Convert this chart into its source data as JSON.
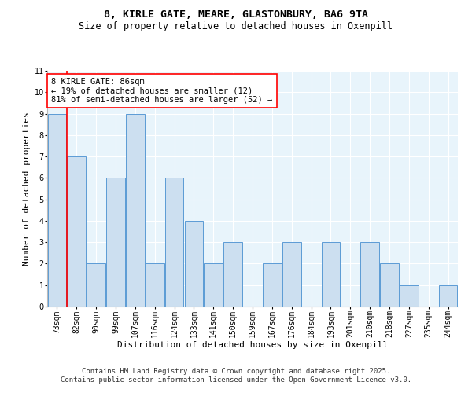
{
  "title1": "8, KIRLE GATE, MEARE, GLASTONBURY, BA6 9TA",
  "title2": "Size of property relative to detached houses in Oxenpill",
  "xlabel": "Distribution of detached houses by size in Oxenpill",
  "ylabel": "Number of detached properties",
  "categories": [
    "73sqm",
    "82sqm",
    "90sqm",
    "99sqm",
    "107sqm",
    "116sqm",
    "124sqm",
    "133sqm",
    "141sqm",
    "150sqm",
    "159sqm",
    "167sqm",
    "176sqm",
    "184sqm",
    "193sqm",
    "201sqm",
    "210sqm",
    "218sqm",
    "227sqm",
    "235sqm",
    "244sqm"
  ],
  "values": [
    9,
    7,
    2,
    6,
    9,
    2,
    6,
    4,
    2,
    3,
    0,
    2,
    3,
    0,
    3,
    0,
    3,
    2,
    1,
    0,
    1
  ],
  "bar_color": "#ccdff0",
  "bar_edge_color": "#5b9bd5",
  "ylim": [
    0,
    11
  ],
  "yticks": [
    0,
    1,
    2,
    3,
    4,
    5,
    6,
    7,
    8,
    9,
    10,
    11
  ],
  "red_line_x": 0.5,
  "annotation_text": "8 KIRLE GATE: 86sqm\n← 19% of detached houses are smaller (12)\n81% of semi-detached houses are larger (52) →",
  "footer_text": "Contains HM Land Registry data © Crown copyright and database right 2025.\nContains public sector information licensed under the Open Government Licence v3.0.",
  "background_color": "#e8f4fb",
  "grid_color": "#ffffff",
  "title_fontsize": 9.5,
  "subtitle_fontsize": 8.5,
  "axis_label_fontsize": 8,
  "tick_fontsize": 7,
  "annotation_fontsize": 7.5,
  "footer_fontsize": 6.5
}
